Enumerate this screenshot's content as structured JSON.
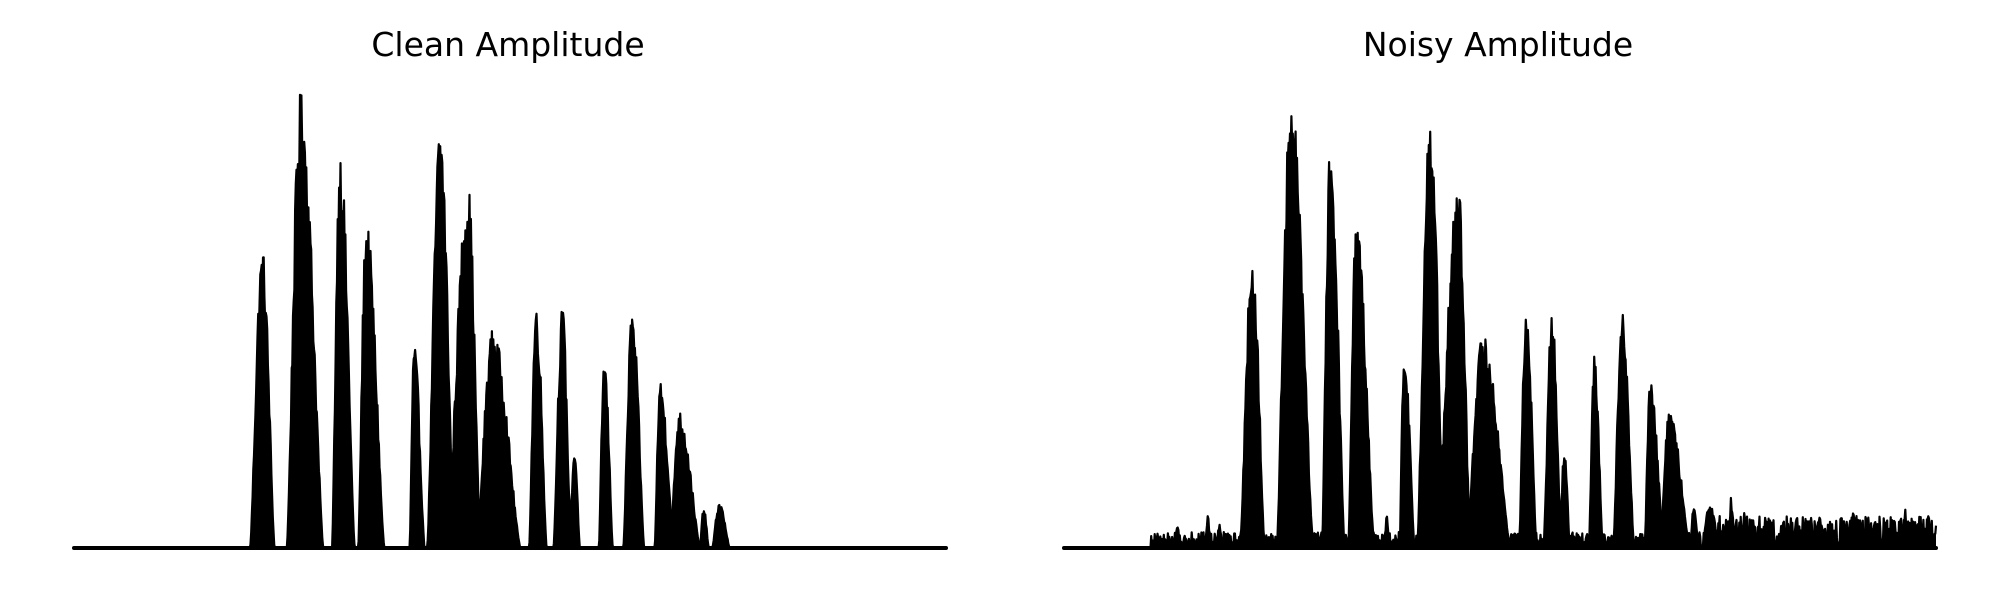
{
  "chart_data": [
    {
      "type": "line",
      "title": "Clean Amplitude",
      "xlabel": "",
      "ylabel": "",
      "axes_visible": false,
      "grid": false,
      "xlim": [
        0,
        100
      ],
      "ylim": [
        0,
        1.0
      ],
      "color": "#000000",
      "series": [
        {
          "bursts": [
            {
              "start": 20.2,
              "peak": 21.6,
              "end": 23.0,
              "amp": 0.66
            },
            {
              "start": 24.4,
              "peak": 26.0,
              "end": 28.6,
              "amp": 1.0
            },
            {
              "start": 29.6,
              "peak": 30.5,
              "end": 32.2,
              "amp": 0.88
            },
            {
              "start": 32.6,
              "peak": 33.5,
              "end": 35.6,
              "amp": 0.72
            },
            {
              "start": 38.5,
              "peak": 39.0,
              "end": 40.2,
              "amp": 0.45
            },
            {
              "start": 40.5,
              "peak": 42.0,
              "end": 43.6,
              "amp": 0.94
            },
            {
              "start": 42.8,
              "peak": 45.2,
              "end": 46.6,
              "amp": 0.8
            },
            {
              "start": 46.2,
              "peak": 48.0,
              "end": 51.2,
              "amp": 0.48
            },
            {
              "start": 52.2,
              "peak": 53.0,
              "end": 54.2,
              "amp": 0.54
            },
            {
              "start": 55.0,
              "peak": 56.0,
              "end": 57.0,
              "amp": 0.53
            },
            {
              "start": 56.8,
              "peak": 57.4,
              "end": 58.0,
              "amp": 0.22
            },
            {
              "start": 60.2,
              "peak": 60.8,
              "end": 61.8,
              "amp": 0.42
            },
            {
              "start": 63.0,
              "peak": 64.0,
              "end": 65.4,
              "amp": 0.52
            },
            {
              "start": 66.6,
              "peak": 67.2,
              "end": 68.8,
              "amp": 0.37
            },
            {
              "start": 68.4,
              "peak": 69.4,
              "end": 71.8,
              "amp": 0.3
            },
            {
              "start": 71.8,
              "peak": 72.2,
              "end": 72.8,
              "amp": 0.09
            },
            {
              "start": 73.2,
              "peak": 74.0,
              "end": 75.2,
              "amp": 0.1
            }
          ]
        }
      ]
    },
    {
      "type": "line",
      "title": "Noisy Amplitude",
      "xlabel": "",
      "ylabel": "",
      "axes_visible": false,
      "grid": false,
      "xlim": [
        0,
        100
      ],
      "ylim": [
        0,
        1.0
      ],
      "color": "#000000",
      "series": [
        {
          "bursts": [
            {
              "start": 20.2,
              "peak": 21.6,
              "end": 23.0,
              "amp": 0.66
            },
            {
              "start": 24.4,
              "peak": 26.0,
              "end": 28.6,
              "amp": 1.0
            },
            {
              "start": 29.6,
              "peak": 30.5,
              "end": 32.2,
              "amp": 0.88
            },
            {
              "start": 32.6,
              "peak": 33.5,
              "end": 35.6,
              "amp": 0.72
            },
            {
              "start": 38.5,
              "peak": 39.0,
              "end": 40.2,
              "amp": 0.45
            },
            {
              "start": 40.5,
              "peak": 42.0,
              "end": 43.6,
              "amp": 0.94
            },
            {
              "start": 42.8,
              "peak": 45.2,
              "end": 46.6,
              "amp": 0.8
            },
            {
              "start": 46.2,
              "peak": 48.0,
              "end": 51.2,
              "amp": 0.48
            },
            {
              "start": 52.2,
              "peak": 53.0,
              "end": 54.2,
              "amp": 0.54
            },
            {
              "start": 55.0,
              "peak": 56.0,
              "end": 57.0,
              "amp": 0.53
            },
            {
              "start": 56.8,
              "peak": 57.4,
              "end": 58.0,
              "amp": 0.22
            },
            {
              "start": 60.2,
              "peak": 60.8,
              "end": 61.8,
              "amp": 0.42
            },
            {
              "start": 63.0,
              "peak": 64.0,
              "end": 65.4,
              "amp": 0.52
            },
            {
              "start": 66.6,
              "peak": 67.2,
              "end": 68.8,
              "amp": 0.37
            },
            {
              "start": 68.4,
              "peak": 69.4,
              "end": 71.8,
              "amp": 0.3
            },
            {
              "start": 71.8,
              "peak": 72.2,
              "end": 72.8,
              "amp": 0.09
            },
            {
              "start": 73.2,
              "peak": 74.0,
              "end": 75.2,
              "amp": 0.1
            }
          ],
          "noise_floor": 0.05,
          "noise_spikes": [
            {
              "x": 13.0,
              "amp": 0.06
            },
            {
              "x": 16.5,
              "amp": 0.09
            },
            {
              "x": 17.8,
              "amp": 0.06
            },
            {
              "x": 26.8,
              "amp": 0.08
            },
            {
              "x": 34.8,
              "amp": 0.1
            },
            {
              "x": 37.0,
              "amp": 0.08
            },
            {
              "x": 76.5,
              "amp": 0.13
            },
            {
              "x": 78.0,
              "amp": 0.09
            },
            {
              "x": 80.5,
              "amp": 0.07
            },
            {
              "x": 84.0,
              "amp": 0.09
            },
            {
              "x": 86.5,
              "amp": 0.08
            },
            {
              "x": 90.5,
              "amp": 0.09
            },
            {
              "x": 93.0,
              "amp": 0.08
            },
            {
              "x": 96.5,
              "amp": 0.09
            },
            {
              "x": 99.2,
              "amp": 0.07
            }
          ]
        }
      ]
    }
  ]
}
